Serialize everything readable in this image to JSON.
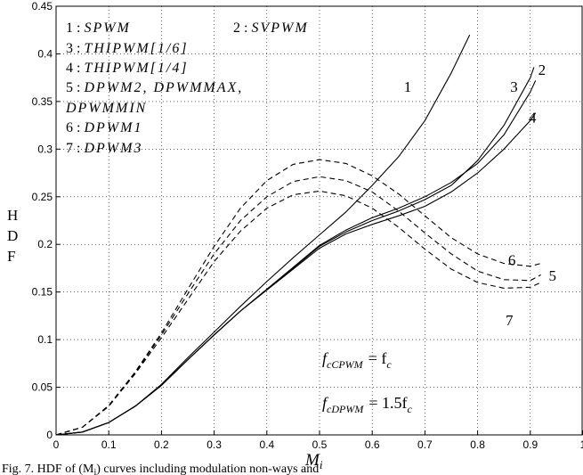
{
  "chart_data": {
    "type": "line",
    "xlabel": "M_i",
    "ylabel": [
      "H",
      "D",
      "F"
    ],
    "xlim": [
      0,
      1
    ],
    "ylim": [
      0,
      0.45
    ],
    "x_ticks": [
      "0",
      "0.1",
      "0.2",
      "0.3",
      "0.4",
      "0.5",
      "0.6",
      "0.7",
      "0.8",
      "0.9",
      "1"
    ],
    "y_ticks": [
      "0",
      "0.05",
      "0.1",
      "0.15",
      "0.2",
      "0.25",
      "0.3",
      "0.35",
      "0.4",
      "0.45"
    ],
    "grid": true,
    "legend_lines": [
      {
        "num": "1 :",
        "name": "SPWM"
      },
      {
        "num": "2 :",
        "name": "SVPWM"
      },
      {
        "num": "3 :",
        "name": "THIPWM[1/6]"
      },
      {
        "num": "4 :",
        "name": "THIPWM[1/4]"
      },
      {
        "num": "5 :",
        "name": "DPWM2, DPWMMAX,"
      },
      {
        "num": "",
        "name": "DPWMMIN"
      },
      {
        "num": "6 :",
        "name": "DPWM1"
      },
      {
        "num": "7 :",
        "name": "DPWM3"
      }
    ],
    "annotations": {
      "note1_main": "f",
      "note1_sub": "cCPWM",
      "note1_rhs": "= f",
      "note1_rhs_sub": "c",
      "note2_main": "f",
      "note2_sub": "cDPWM",
      "note2_rhs": "= 1.5f",
      "note2_rhs_sub": "c"
    },
    "series": [
      {
        "name": "1",
        "style": "solid",
        "label_at": [
          0.66,
          0.36
        ],
        "x": [
          0,
          0.05,
          0.1,
          0.15,
          0.2,
          0.25,
          0.3,
          0.35,
          0.4,
          0.45,
          0.5,
          0.55,
          0.6,
          0.65,
          0.7,
          0.75,
          0.785
        ],
        "y": [
          0,
          0.003,
          0.013,
          0.03,
          0.053,
          0.081,
          0.108,
          0.135,
          0.161,
          0.186,
          0.21,
          0.234,
          0.262,
          0.292,
          0.33,
          0.38,
          0.42
        ]
      },
      {
        "name": "2",
        "style": "solid",
        "label_at": [
          0.915,
          0.378
        ],
        "x": [
          0,
          0.05,
          0.1,
          0.15,
          0.2,
          0.25,
          0.3,
          0.35,
          0.4,
          0.45,
          0.5,
          0.55,
          0.6,
          0.65,
          0.7,
          0.75,
          0.8,
          0.85,
          0.9,
          0.907
        ],
        "y": [
          0,
          0.003,
          0.013,
          0.03,
          0.052,
          0.079,
          0.105,
          0.13,
          0.153,
          0.175,
          0.198,
          0.213,
          0.225,
          0.235,
          0.247,
          0.262,
          0.288,
          0.325,
          0.375,
          0.386
        ]
      },
      {
        "name": "3",
        "style": "solid",
        "label_at": [
          0.862,
          0.36
        ],
        "x": [
          0,
          0.05,
          0.1,
          0.15,
          0.2,
          0.25,
          0.3,
          0.35,
          0.4,
          0.45,
          0.5,
          0.55,
          0.6,
          0.65,
          0.7,
          0.75,
          0.8,
          0.85,
          0.9,
          0.91
        ],
        "y": [
          0,
          0.003,
          0.013,
          0.03,
          0.052,
          0.079,
          0.105,
          0.13,
          0.153,
          0.176,
          0.199,
          0.215,
          0.228,
          0.238,
          0.25,
          0.265,
          0.285,
          0.315,
          0.36,
          0.372
        ]
      },
      {
        "name": "4",
        "style": "solid",
        "label_at": [
          0.897,
          0.328
        ],
        "x": [
          0,
          0.05,
          0.1,
          0.15,
          0.2,
          0.25,
          0.3,
          0.35,
          0.4,
          0.45,
          0.5,
          0.55,
          0.6,
          0.65,
          0.7,
          0.75,
          0.8,
          0.85,
          0.9,
          0.91
        ],
        "y": [
          0,
          0.003,
          0.013,
          0.03,
          0.052,
          0.079,
          0.105,
          0.13,
          0.152,
          0.174,
          0.196,
          0.211,
          0.221,
          0.23,
          0.24,
          0.255,
          0.275,
          0.3,
          0.33,
          0.338
        ]
      },
      {
        "name": "5",
        "style": "dashed",
        "label_at": [
          0.935,
          0.162
        ],
        "x": [
          0,
          0.05,
          0.1,
          0.15,
          0.2,
          0.25,
          0.3,
          0.35,
          0.4,
          0.45,
          0.5,
          0.55,
          0.6,
          0.65,
          0.7,
          0.75,
          0.8,
          0.85,
          0.9,
          0.92
        ],
        "y": [
          0,
          0.008,
          0.03,
          0.065,
          0.105,
          0.148,
          0.19,
          0.225,
          0.25,
          0.266,
          0.271,
          0.267,
          0.255,
          0.235,
          0.212,
          0.19,
          0.172,
          0.163,
          0.162,
          0.168
        ]
      },
      {
        "name": "6",
        "style": "dashed",
        "label_at": [
          0.858,
          0.178
        ],
        "x": [
          0,
          0.05,
          0.1,
          0.15,
          0.2,
          0.25,
          0.3,
          0.35,
          0.4,
          0.45,
          0.5,
          0.55,
          0.6,
          0.65,
          0.7,
          0.75,
          0.8,
          0.85,
          0.9,
          0.92
        ],
        "y": [
          0,
          0.008,
          0.031,
          0.066,
          0.107,
          0.153,
          0.198,
          0.238,
          0.267,
          0.284,
          0.289,
          0.285,
          0.272,
          0.253,
          0.23,
          0.207,
          0.19,
          0.18,
          0.177,
          0.18
        ]
      },
      {
        "name": "7",
        "style": "dashed",
        "label_at": [
          0.853,
          0.115
        ],
        "x": [
          0,
          0.05,
          0.1,
          0.15,
          0.2,
          0.25,
          0.3,
          0.35,
          0.4,
          0.45,
          0.5,
          0.55,
          0.6,
          0.65,
          0.7,
          0.75,
          0.8,
          0.85,
          0.9,
          0.92
        ],
        "y": [
          0,
          0.008,
          0.03,
          0.064,
          0.102,
          0.142,
          0.182,
          0.214,
          0.238,
          0.252,
          0.256,
          0.251,
          0.238,
          0.218,
          0.195,
          0.174,
          0.16,
          0.154,
          0.155,
          0.16
        ]
      }
    ]
  },
  "caption": {
    "prefix": "Fig. 7. HDF",
    "middle": " of (M",
    "sub": "i",
    "suffix": ") curves including modulation non-ways and"
  }
}
